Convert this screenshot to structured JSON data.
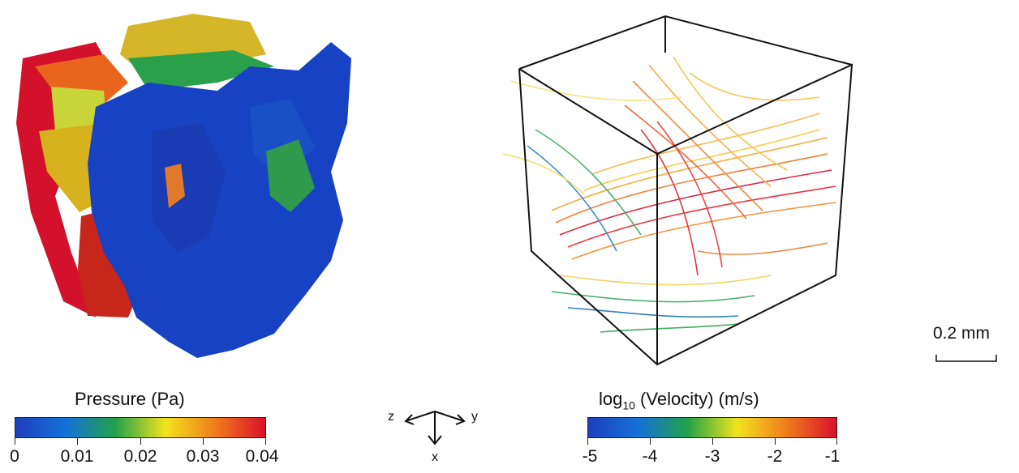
{
  "pressure_legend": {
    "title": "Pressure (Pa)",
    "ticks": [
      "0",
      "0.01",
      "0.02",
      "0.03",
      "0.04"
    ],
    "colors": [
      "#1f3fbf",
      "#1570d8",
      "#22a24a",
      "#f2e31c",
      "#f07c1c",
      "#d9102a"
    ]
  },
  "velocity_legend": {
    "title_prefix": "log",
    "title_subscript": "10",
    "title_rest": " (Velocity) (m/s)",
    "ticks": [
      "-5",
      "-4",
      "-3",
      "-2",
      "-1"
    ],
    "colors": [
      "#1f3fbf",
      "#1570d8",
      "#22a24a",
      "#f2e31c",
      "#f07c1c",
      "#d9102a"
    ]
  },
  "axes": {
    "z": "z",
    "y": "y",
    "x": "x"
  },
  "scale_bar": {
    "label": "0.2 mm"
  }
}
